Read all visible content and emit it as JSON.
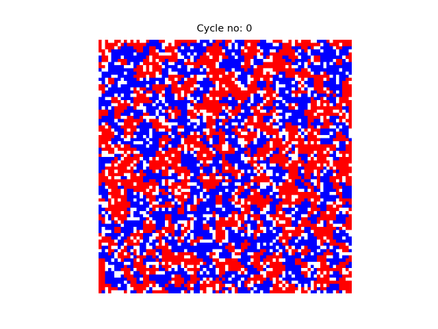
{
  "figure": {
    "title": "Cycle no: 0"
  },
  "grid": {
    "rows": 80,
    "cols": 80,
    "palette": {
      "empty": "#ffffff",
      "red": "#ff0000",
      "blue": "#0000ff"
    },
    "composition_percent": {
      "red": 40,
      "blue": 40,
      "empty": 20
    },
    "cycle": 0
  }
}
